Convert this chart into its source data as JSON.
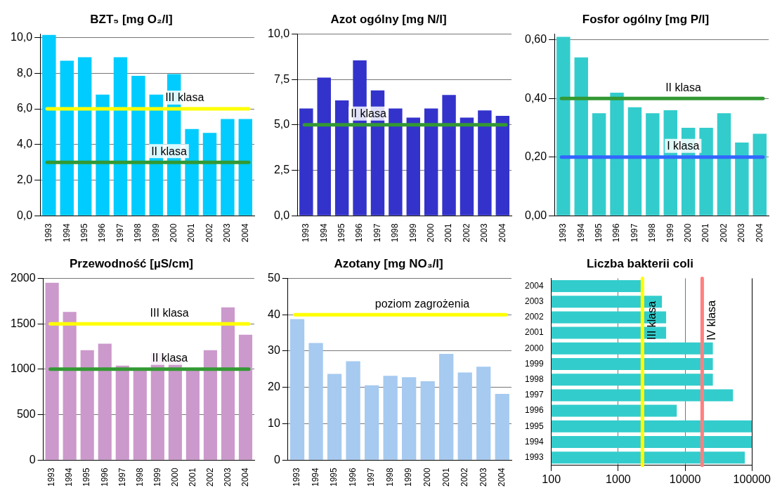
{
  "chart_data": [
    {
      "type": "bar",
      "title": "BZT₅ [mg O₂/l]",
      "categories": [
        "1993",
        "1994",
        "1995",
        "1996",
        "1997",
        "1998",
        "1999",
        "2000",
        "2001",
        "2002",
        "2003",
        "2004"
      ],
      "values": [
        10.15,
        8.7,
        8.9,
        6.8,
        8.9,
        7.85,
        6.8,
        7.95,
        4.87,
        4.65,
        5.43,
        5.43
      ],
      "color": "#00ccff",
      "ylim": [
        0,
        10.2
      ],
      "yticks": [
        {
          "value": 0,
          "label": "0,0"
        },
        {
          "value": 2,
          "label": "2,0"
        },
        {
          "value": 4,
          "label": "4,0"
        },
        {
          "value": 6,
          "label": "6,0"
        },
        {
          "value": 8,
          "label": "8,0"
        },
        {
          "value": 10,
          "label": "10,0"
        }
      ],
      "grid": "y",
      "ref_lines": [
        {
          "axis": "y",
          "value": 6,
          "label": "III klasa",
          "color": "#ffff00"
        },
        {
          "axis": "y",
          "value": 3,
          "label": "II klasa",
          "color": "#339933"
        }
      ]
    },
    {
      "type": "bar",
      "title": "Azot ogólny [mg N/l]",
      "categories": [
        "1993",
        "1994",
        "1995",
        "1996",
        "1997",
        "1998",
        "1999",
        "2000",
        "2001",
        "2002",
        "2003",
        "2004"
      ],
      "values": [
        5.9,
        7.6,
        6.35,
        8.55,
        6.9,
        5.9,
        5.4,
        5.9,
        6.65,
        5.4,
        5.8,
        5.5
      ],
      "color": "#3333cc",
      "ylim": [
        0,
        10
      ],
      "yticks": [
        {
          "value": 0,
          "label": "0,0"
        },
        {
          "value": 2.5,
          "label": "2,5"
        },
        {
          "value": 5,
          "label": "5,0"
        },
        {
          "value": 7.5,
          "label": "7,5"
        },
        {
          "value": 10,
          "label": "10,0"
        }
      ],
      "grid": "y",
      "ref_lines": [
        {
          "axis": "y",
          "value": 5,
          "label": "II klasa",
          "color": "#339933"
        }
      ]
    },
    {
      "type": "bar",
      "title": "Fosfor ogólny [mg P/l]",
      "categories": [
        "1993",
        "1994",
        "1995",
        "1996",
        "1997",
        "1998",
        "1999",
        "2000",
        "2001",
        "2002",
        "2003",
        "2004"
      ],
      "values": [
        0.61,
        0.54,
        0.35,
        0.42,
        0.37,
        0.35,
        0.36,
        0.3,
        0.3,
        0.35,
        0.25,
        0.28
      ],
      "color": "#33cccc",
      "ylim": [
        0,
        0.62
      ],
      "yticks": [
        {
          "value": 0,
          "label": "0,00"
        },
        {
          "value": 0.2,
          "label": "0,20"
        },
        {
          "value": 0.4,
          "label": "0,40"
        },
        {
          "value": 0.6,
          "label": "0,60"
        }
      ],
      "grid": "y",
      "ref_lines": [
        {
          "axis": "y",
          "value": 0.4,
          "label": "II klasa",
          "color": "#339933"
        },
        {
          "axis": "y",
          "value": 0.2,
          "label": "I klasa",
          "color": "#3366ff"
        }
      ]
    },
    {
      "type": "bar",
      "title": "Przewodność [µS/cm]",
      "categories": [
        "1993",
        "1994",
        "1995",
        "1996",
        "1997",
        "1998",
        "1999",
        "2000",
        "2001",
        "2002",
        "2003",
        "2004"
      ],
      "values": [
        1950,
        1630,
        1210,
        1280,
        1040,
        1000,
        1180,
        1110,
        1000,
        1210,
        1680,
        1380
      ],
      "color": "#cc99cc",
      "ylim": [
        0,
        2000
      ],
      "yticks": [
        0,
        500,
        1000,
        1500,
        2000
      ],
      "grid": "y",
      "ref_lines": [
        {
          "axis": "y",
          "value": 1500,
          "label": "III klasa",
          "color": "#ffff00"
        },
        {
          "axis": "y",
          "value": 1000,
          "label": "II klasa",
          "color": "#339933"
        }
      ]
    },
    {
      "type": "bar",
      "title": "Azotany [mg NO₃/l]",
      "categories": [
        "1993",
        "1994",
        "1995",
        "1996",
        "1997",
        "1998",
        "1999",
        "2000",
        "2001",
        "2002",
        "2003",
        "2004"
      ],
      "values": [
        38.8,
        32.2,
        23.7,
        27.2,
        20.6,
        23.2,
        22.8,
        21.7,
        29.2,
        24.1,
        25.7,
        18.2
      ],
      "color": "#a6caf0",
      "ylim": [
        0,
        50
      ],
      "yticks": [
        0,
        10,
        20,
        30,
        40,
        50
      ],
      "grid": "y",
      "ref_lines": [
        {
          "axis": "y",
          "value": 40,
          "label": "poziom zagrożenia",
          "color": "#ffff00"
        }
      ]
    },
    {
      "type": "bar",
      "orientation": "horizontal",
      "log": "x",
      "title": "Liczba bakterii coli",
      "categories": [
        "2004",
        "2003",
        "2002",
        "2001",
        "2000",
        "1999",
        "1998",
        "1997",
        "1996",
        "1995",
        "1994",
        "1993"
      ],
      "values": [
        2300,
        4500,
        5200,
        5200,
        26000,
        26000,
        26000,
        52000,
        7500,
        100000,
        100000,
        78000
      ],
      "color": "#33cccc",
      "xlim": [
        100,
        100000
      ],
      "xticks": [
        100,
        1000,
        10000,
        100000
      ],
      "grid": "x",
      "ref_lines": [
        {
          "axis": "x",
          "value": 2300,
          "label": "III klasa",
          "color": "#ffff00"
        },
        {
          "axis": "x",
          "value": 18000,
          "label": "IV klasa",
          "color": "#ff8080"
        }
      ]
    }
  ]
}
